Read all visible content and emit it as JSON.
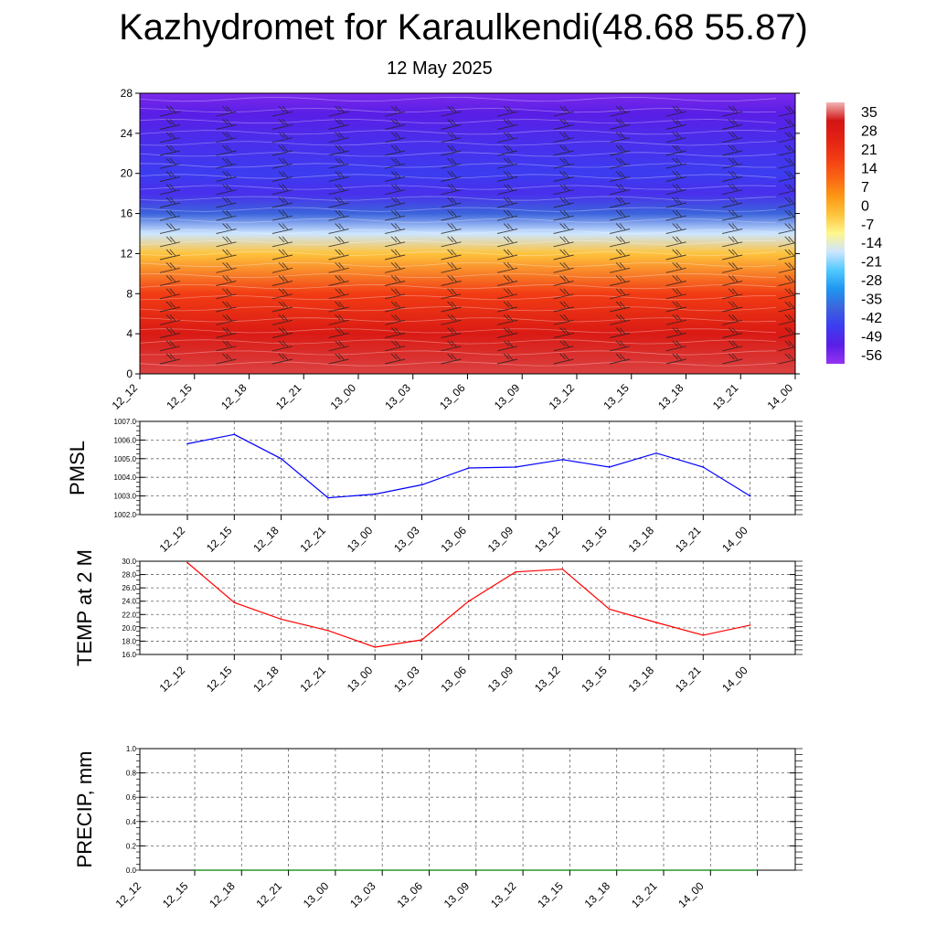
{
  "title": "Kazhydromet for Karaulkendi(48.68 55.87)",
  "subtitle": "12 May 2025",
  "time_labels": [
    "12_12",
    "12_15",
    "12_18",
    "12_21",
    "13_00",
    "13_03",
    "13_06",
    "13_09",
    "13_12",
    "13_15",
    "13_18",
    "13_21",
    "14_00"
  ],
  "colorbar": {
    "labels": [
      "35",
      "28",
      "21",
      "14",
      "7",
      "0",
      "-7",
      "-14",
      "-21",
      "-28",
      "-35",
      "-42",
      "-49",
      "-56"
    ],
    "colors": [
      "#f2b4b4",
      "#d21414",
      "#e42314",
      "#f23c14",
      "#fa6414",
      "#fc9614",
      "#fec43c",
      "#fff68c",
      "#cde6ff",
      "#50c8ff",
      "#1e96f0",
      "#3c64dc",
      "#3c3cf0",
      "#5a1ee6",
      "#9632f0"
    ]
  },
  "chart_data": [
    {
      "type": "heatmap",
      "name": "temperature-height-section",
      "x": [
        "12_12",
        "12_15",
        "12_18",
        "12_21",
        "13_00",
        "13_03",
        "13_06",
        "13_09",
        "13_12",
        "13_15",
        "13_18",
        "13_21",
        "14_00"
      ],
      "y_ticks": [
        0,
        4,
        8,
        12,
        16,
        20,
        24,
        28
      ],
      "ylim": [
        0,
        28
      ],
      "vertical_profile": [
        {
          "level": 0,
          "value": 30
        },
        {
          "level": 4,
          "value": 25
        },
        {
          "level": 8,
          "value": 14
        },
        {
          "level": 12,
          "value": -7
        },
        {
          "level": 14,
          "value": -21
        },
        {
          "level": 16,
          "value": -42
        },
        {
          "level": 18,
          "value": -52
        },
        {
          "level": 20,
          "value": -49
        },
        {
          "level": 23,
          "value": -52
        },
        {
          "level": 26,
          "value": -56
        },
        {
          "level": 28,
          "value": -60
        }
      ],
      "overlay": "wind barbs"
    },
    {
      "type": "line",
      "ylabel": "PMSL",
      "x": [
        "12_12",
        "12_15",
        "12_18",
        "12_21",
        "13_00",
        "13_03",
        "13_06",
        "13_09",
        "13_12",
        "13_15",
        "13_18",
        "13_21",
        "14_00"
      ],
      "values": [
        1005.8,
        1006.3,
        1005.0,
        1002.9,
        1003.1,
        1003.6,
        1004.5,
        1004.55,
        1004.95,
        1004.55,
        1005.3,
        1004.55,
        1003.0
      ],
      "ylim": [
        1002.0,
        1007.0
      ],
      "y_ticks": [
        "1002.0",
        "1003.0",
        "1004.0",
        "1005.0",
        "1006.0",
        "1007.0"
      ],
      "color": "#0000ff",
      "grid": true
    },
    {
      "type": "line",
      "ylabel": "TEMP at 2 M",
      "x": [
        "12_12",
        "12_15",
        "12_18",
        "12_21",
        "13_00",
        "13_03",
        "13_06",
        "13_09",
        "13_12",
        "13_15",
        "13_18",
        "13_21",
        "14_00"
      ],
      "values": [
        29.8,
        23.8,
        21.3,
        19.6,
        17.1,
        18.2,
        24.0,
        28.4,
        28.8,
        22.8,
        20.8,
        18.9,
        20.4
      ],
      "ylim": [
        16.0,
        30.0
      ],
      "y_ticks": [
        "16.0",
        "18.0",
        "20.0",
        "22.0",
        "24.0",
        "26.0",
        "28.0",
        "30.0"
      ],
      "color": "#ff0000",
      "grid": true
    },
    {
      "type": "line",
      "ylabel": "PRECIP, mm",
      "x": [
        "12_12",
        "12_15",
        "12_18",
        "12_21",
        "13_00",
        "13_03",
        "13_06",
        "13_09",
        "13_12",
        "13_15",
        "13_18",
        "13_21",
        "14_00"
      ],
      "values": [
        0,
        0,
        0,
        0,
        0,
        0,
        0,
        0,
        0,
        0,
        0,
        0,
        0
      ],
      "ylim": [
        0.0,
        1.0
      ],
      "y_ticks": [
        "0.0",
        "0.2",
        "0.4",
        "0.6",
        "0.8",
        "1.0"
      ],
      "color": "#008000",
      "grid": true
    }
  ]
}
